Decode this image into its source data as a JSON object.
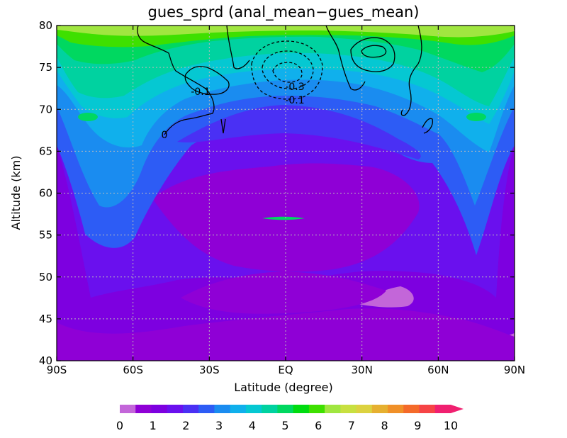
{
  "chart_data": {
    "type": "contour",
    "title": "gues_sprd (anal_mean−gues_mean)",
    "xlabel": "Latitude (degree)",
    "ylabel": "Altitude (km)",
    "xlim": [
      -90,
      90
    ],
    "ylim": [
      40,
      80
    ],
    "x_ticks": [
      {
        "value": -90,
        "label": "90S"
      },
      {
        "value": -60,
        "label": "60S"
      },
      {
        "value": -30,
        "label": "30S"
      },
      {
        "value": 0,
        "label": "EQ"
      },
      {
        "value": 30,
        "label": "30N"
      },
      {
        "value": 60,
        "label": "60N"
      },
      {
        "value": 90,
        "label": "90N"
      }
    ],
    "y_ticks": [
      40,
      45,
      50,
      55,
      60,
      65,
      70,
      75,
      80
    ],
    "grid": true,
    "filled_field": {
      "name": "gues_sprd",
      "range": [
        0,
        10
      ],
      "step": 0.5,
      "colorbar_labels": [
        "0",
        "1",
        "2",
        "3",
        "4",
        "5",
        "6",
        "7",
        "8",
        "9",
        "10"
      ],
      "colors": [
        "#c366d9",
        "#8f00d6",
        "#7d00e0",
        "#6a10ee",
        "#4a30f4",
        "#2d5cf5",
        "#1a8cf0",
        "#10b0ec",
        "#05c8d2",
        "#00d2a0",
        "#00d860",
        "#00dc10",
        "#3ee000",
        "#a0e640",
        "#c8e040",
        "#dcd240",
        "#e6b030",
        "#f09028",
        "#f46a2a",
        "#f64446",
        "#f02070"
      ],
      "overflow_arrow": true
    },
    "contour_lines": {
      "name": "anal_mean−gues_mean",
      "labels": [
        "-0.1",
        "0",
        "-0.3",
        "-0.1"
      ],
      "negative_dashed": true,
      "color": "#000000"
    }
  }
}
